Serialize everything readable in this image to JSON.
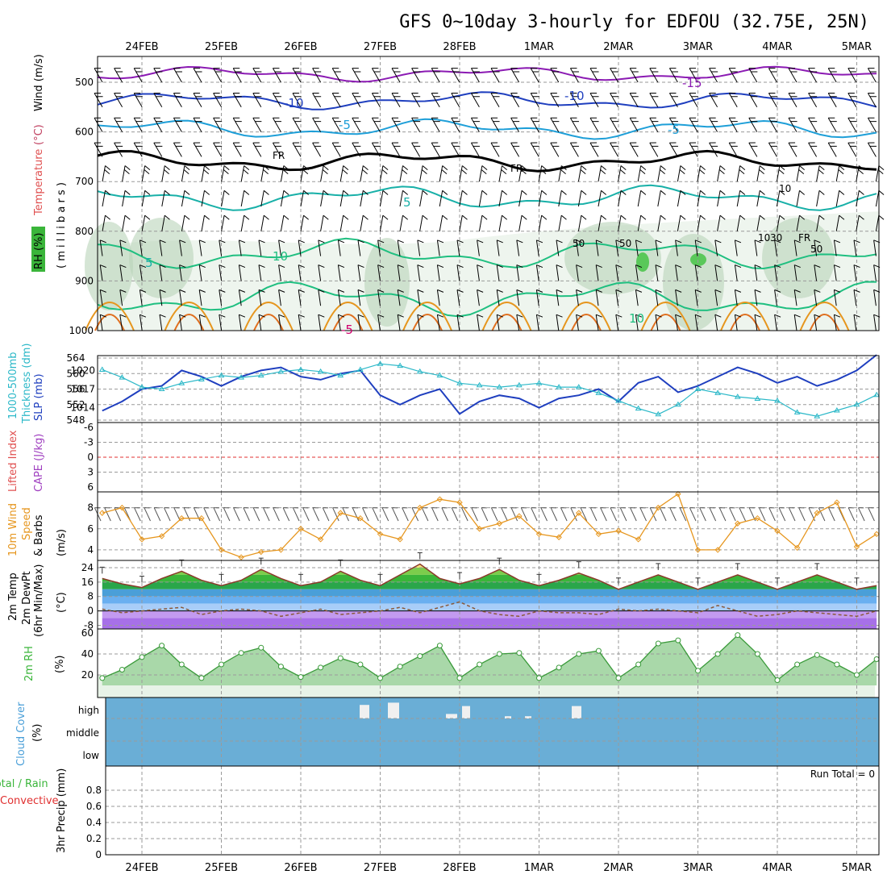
{
  "title": "GFS 0~10day 3-hourly for EDFOU (32.75E, 25N)",
  "dates": [
    "24FEB",
    "25FEB",
    "26FEB",
    "27FEB",
    "28FEB",
    "1MAR",
    "2MAR",
    "3MAR",
    "4MAR",
    "5MAR"
  ],
  "colors": {
    "grid": "#9a9a9a",
    "slp": "#1f3fbf",
    "thickness": "#2bb8c8",
    "wind10": "#e6961e",
    "temp_fill_green": "#3ab53a",
    "temp_fill_yellow": "#f5e07a",
    "rh_fill": "#8cc88c",
    "cloud_bg": "#6aaed6",
    "cloud_bar": "#f0f0f0"
  },
  "panels": {
    "upper": {
      "ylabel_rh": "RH (%)",
      "ylabel_temp": "Temperature",
      "ylabel_tempunit": "(°C)",
      "ylabel_wind": "Wind (m/s)",
      "ylabel_mb": "( m i l l i b a r s )",
      "yticks": [
        500,
        600,
        700,
        800,
        900,
        1000
      ],
      "contour_labels": [
        "-10",
        "-10",
        "-15",
        "-5",
        "-5",
        "FR",
        "FR",
        "FR",
        "5",
        "5",
        "10",
        "10",
        "10",
        "10",
        "50",
        "50",
        "30",
        "50",
        "-5"
      ]
    },
    "thickness": {
      "ylabel_thk": "1000-500mb",
      "ylabel_thk2": "Thickness (dm)",
      "ylabel_slp": "SLP (mb)",
      "yticks_left": [
        564,
        560,
        556,
        552,
        548
      ],
      "yticks_right": [
        1020,
        1017,
        1014
      ]
    },
    "cape": {
      "ylabel_li": "Lifted Index",
      "ylabel_cape": "CAPE (J/kg)",
      "yticks": [
        -6,
        -3,
        0,
        3,
        6
      ]
    },
    "wind10": {
      "ylabel1": "10m Wind",
      "ylabel2": "Speed",
      "ylabel3": "& Barbs",
      "ylabel4": "(m/s)",
      "yticks": [
        8,
        6,
        4
      ]
    },
    "temp": {
      "ylabel1": "2m Temp",
      "ylabel2": "2m DewPt",
      "ylabel3": "(6hr Min/Max)",
      "ylabel4": "(°C)",
      "yticks": [
        24,
        16,
        8,
        0,
        -8
      ]
    },
    "rh": {
      "ylabel1": "2m RH",
      "ylabel2": "(%)",
      "yticks": [
        60,
        40,
        20
      ]
    },
    "cloud": {
      "ylabel1": "Cloud Cover",
      "ylabel2": "(%)",
      "levels": [
        "high",
        "middle",
        "low"
      ]
    },
    "precip": {
      "ylabel1": "Total / Rain",
      "ylabel2": "Convective",
      "ylabel3": "3hr Precip (mm)",
      "yticks": [
        "0.8",
        "0.6",
        "0.4",
        "0.2",
        "0"
      ],
      "run_total": "Run Total = 0"
    }
  },
  "chart_data": [
    {
      "type": "line",
      "title": "1000-500mb Thickness (dm) and SLP (mb)",
      "x": [
        "23FEB 12",
        "23FEB 18",
        "24FEB 00",
        "24FEB 06",
        "24FEB 12",
        "24FEB 18",
        "25FEB 00",
        "25FEB 06",
        "25FEB 12",
        "25FEB 18",
        "26FEB 00",
        "26FEB 06",
        "26FEB 12",
        "26FEB 18",
        "27FEB 00",
        "27FEB 06",
        "27FEB 12",
        "27FEB 18",
        "28FEB 00",
        "28FEB 06",
        "28FEB 12",
        "28FEB 18",
        "1MAR 00",
        "1MAR 06",
        "1MAR 12",
        "1MAR 18",
        "2MAR 00",
        "2MAR 06",
        "2MAR 12",
        "2MAR 18",
        "3MAR 00",
        "3MAR 06",
        "3MAR 12",
        "3MAR 18",
        "4MAR 00",
        "4MAR 06",
        "4MAR 12",
        "4MAR 18",
        "5MAR 00",
        "5MAR 06"
      ],
      "series": [
        {
          "name": "SLP (mb)",
          "axis": "right",
          "values": [
            1013.5,
            1015,
            1017,
            1017.5,
            1020,
            1019,
            1017.5,
            1019,
            1020,
            1020.5,
            1019,
            1018.5,
            1019.5,
            1020,
            1016,
            1014.5,
            1016,
            1017,
            1013,
            1015,
            1016,
            1015.5,
            1014,
            1015.5,
            1016,
            1017,
            1015,
            1018,
            1019,
            1016.5,
            1017.5,
            1019,
            1020.5,
            1019.5,
            1018,
            1019,
            1017.5,
            1018.5,
            1020,
            1022.5
          ]
        },
        {
          "name": "1000-500mb Thickness (dm)",
          "axis": "left",
          "values": [
            561,
            559,
            556.5,
            556,
            557.5,
            558.5,
            559.5,
            559,
            559.5,
            560.5,
            561,
            560.5,
            559.5,
            561,
            562.5,
            562,
            560.5,
            559.5,
            557.5,
            557,
            556.5,
            557,
            557.5,
            556.5,
            556.5,
            555,
            553,
            551,
            549.5,
            552,
            556,
            555,
            554,
            553.5,
            553,
            550,
            549,
            550.5,
            552,
            554.5
          ]
        }
      ],
      "ylim_left": [
        548,
        564
      ],
      "ylim_right": [
        1012,
        1022
      ]
    },
    {
      "type": "line",
      "title": "10m Wind Speed (m/s)",
      "x": [
        "23FEB 12",
        "23FEB 18",
        "24FEB 00",
        "24FEB 06",
        "24FEB 12",
        "24FEB 18",
        "25FEB 00",
        "25FEB 06",
        "25FEB 12",
        "25FEB 18",
        "26FEB 00",
        "26FEB 06",
        "26FEB 12",
        "26FEB 18",
        "27FEB 00",
        "27FEB 06",
        "27FEB 12",
        "27FEB 18",
        "28FEB 00",
        "28FEB 06",
        "28FEB 12",
        "28FEB 18",
        "1MAR 00",
        "1MAR 06",
        "1MAR 12",
        "1MAR 18",
        "2MAR 00",
        "2MAR 06",
        "2MAR 12",
        "2MAR 18",
        "3MAR 00",
        "3MAR 06",
        "3MAR 12",
        "3MAR 18",
        "4MAR 00",
        "4MAR 06",
        "4MAR 12",
        "4MAR 18",
        "5MAR 00",
        "5MAR 06"
      ],
      "series": [
        {
          "name": "10m Wind Speed",
          "values": [
            7.5,
            8,
            5,
            5.3,
            7,
            7,
            4,
            3.3,
            3.8,
            4,
            6,
            5,
            7.5,
            7,
            5.5,
            5,
            8,
            8.8,
            8.5,
            6,
            6.5,
            7.2,
            5.5,
            5.2,
            7.5,
            5.5,
            5.8,
            5,
            8,
            9.3,
            4,
            4,
            6.5,
            7,
            5.8,
            4.2,
            7.5,
            8.5,
            4.3,
            5.5
          ]
        }
      ],
      "ylim": [
        3,
        9.5
      ]
    },
    {
      "type": "area",
      "title": "2m Temp and 2m DewPt (°C)",
      "x": [
        "23FEB 12",
        "23FEB 18",
        "24FEB 00",
        "24FEB 06",
        "24FEB 12",
        "24FEB 18",
        "25FEB 00",
        "25FEB 06",
        "25FEB 12",
        "25FEB 18",
        "26FEB 00",
        "26FEB 06",
        "26FEB 12",
        "26FEB 18",
        "27FEB 00",
        "27FEB 06",
        "27FEB 12",
        "27FEB 18",
        "28FEB 00",
        "28FEB 06",
        "28FEB 12",
        "28FEB 18",
        "1MAR 00",
        "1MAR 06",
        "1MAR 12",
        "1MAR 18",
        "2MAR 00",
        "2MAR 06",
        "2MAR 12",
        "2MAR 18",
        "3MAR 00",
        "3MAR 06",
        "3MAR 12",
        "3MAR 18",
        "4MAR 00",
        "4MAR 06",
        "4MAR 12",
        "4MAR 18",
        "5MAR 00",
        "5MAR 06"
      ],
      "series": [
        {
          "name": "2m Temp",
          "values": [
            18,
            15,
            13,
            18,
            22,
            17,
            14,
            17,
            23,
            18,
            14,
            16,
            22,
            17,
            14,
            20,
            26,
            18,
            15,
            18,
            23,
            17,
            14,
            17,
            21,
            17,
            12,
            16,
            20,
            16,
            12,
            16,
            20,
            16,
            12,
            16,
            20,
            16,
            12,
            14
          ]
        },
        {
          "name": "2m DewPt",
          "values": [
            1,
            -1,
            0,
            1,
            2,
            -2,
            0,
            1,
            0,
            -3,
            -1,
            1,
            -2,
            -1,
            0,
            2,
            -1,
            2,
            5,
            0,
            -2,
            -3,
            0,
            -1,
            -1,
            -2,
            1,
            0,
            1,
            0,
            -1,
            3,
            0,
            -3,
            -2,
            0,
            -1,
            -2,
            -3,
            0
          ]
        }
      ],
      "ylim": [
        -10,
        28
      ]
    },
    {
      "type": "area",
      "title": "2m RH (%)",
      "x": [
        "23FEB 12",
        "23FEB 18",
        "24FEB 00",
        "24FEB 06",
        "24FEB 12",
        "24FEB 18",
        "25FEB 00",
        "25FEB 06",
        "25FEB 12",
        "25FEB 18",
        "26FEB 00",
        "26FEB 06",
        "26FEB 12",
        "26FEB 18",
        "27FEB 00",
        "27FEB 06",
        "27FEB 12",
        "27FEB 18",
        "28FEB 00",
        "28FEB 06",
        "28FEB 12",
        "28FEB 18",
        "1MAR 00",
        "1MAR 06",
        "1MAR 12",
        "1MAR 18",
        "2MAR 00",
        "2MAR 06",
        "2MAR 12",
        "2MAR 18",
        "3MAR 00",
        "3MAR 06",
        "3MAR 12",
        "3MAR 18",
        "4MAR 00",
        "4MAR 06",
        "4MAR 12",
        "4MAR 18",
        "5MAR 00",
        "5MAR 06"
      ],
      "series": [
        {
          "name": "2m RH",
          "values": [
            17,
            25,
            37,
            48,
            30,
            17,
            30,
            41,
            46,
            28,
            18,
            27,
            36,
            30,
            17,
            28,
            38,
            48,
            17,
            30,
            40,
            41,
            17,
            27,
            40,
            43,
            17,
            30,
            50,
            53,
            24,
            40,
            58,
            40,
            15,
            30,
            39,
            30,
            20,
            35
          ]
        }
      ],
      "ylim": [
        10,
        60
      ]
    },
    {
      "type": "bar",
      "title": "Cloud Cover (%)",
      "categories": [
        "27FEB 00",
        "27FEB 06",
        "28FEB 00",
        "28FEB 06",
        "1MAR 00",
        "1MAR 06",
        "1MAR 18"
      ],
      "series": [
        {
          "name": "high",
          "values": [
            60,
            70,
            20,
            55,
            10,
            10,
            55
          ]
        }
      ],
      "ylim": [
        0,
        100
      ]
    },
    {
      "type": "bar",
      "title": "3hr Precip (mm)",
      "categories": [
        "24FEB",
        "25FEB",
        "26FEB",
        "27FEB",
        "28FEB",
        "1MAR",
        "2MAR",
        "3MAR",
        "4MAR",
        "5MAR"
      ],
      "series": [
        {
          "name": "Total / Rain",
          "values": [
            0,
            0,
            0,
            0,
            0,
            0,
            0,
            0,
            0,
            0
          ]
        }
      ],
      "ylim": [
        0,
        1
      ]
    }
  ]
}
